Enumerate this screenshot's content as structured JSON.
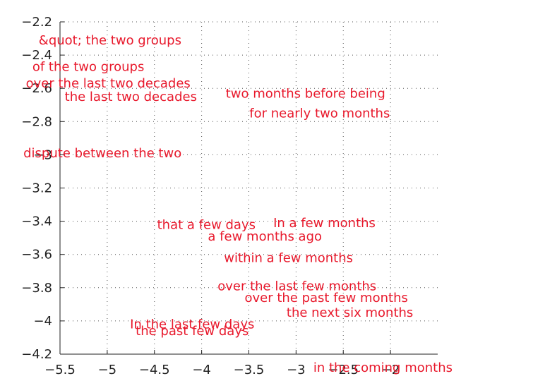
{
  "chart_data": {
    "type": "scatter",
    "title": "",
    "xlabel": "",
    "ylabel": "",
    "xlim": [
      -5.5,
      -1.5
    ],
    "ylim": [
      -4.2,
      -2.2
    ],
    "grid": true,
    "x_ticks": [
      {
        "value": -5.5,
        "label": "−5.5"
      },
      {
        "value": -5.0,
        "label": "−5"
      },
      {
        "value": -4.5,
        "label": "−4.5"
      },
      {
        "value": -4.0,
        "label": "−4"
      },
      {
        "value": -3.5,
        "label": "−3.5"
      },
      {
        "value": -3.0,
        "label": "−3"
      },
      {
        "value": -2.5,
        "label": "−2.5"
      },
      {
        "value": -2.0,
        "label": "−2"
      }
    ],
    "y_ticks": [
      {
        "value": -2.2,
        "label": "−2.2"
      },
      {
        "value": -2.4,
        "label": "−2.4"
      },
      {
        "value": -2.6,
        "label": "−2.6"
      },
      {
        "value": -2.8,
        "label": "−2.8"
      },
      {
        "value": -3.0,
        "label": "−3"
      },
      {
        "value": -3.2,
        "label": "−3.2"
      },
      {
        "value": -3.4,
        "label": "−3.4"
      },
      {
        "value": -3.6,
        "label": "−3.6"
      },
      {
        "value": -3.8,
        "label": "−3.8"
      },
      {
        "value": -4.0,
        "label": "−4"
      },
      {
        "value": -4.2,
        "label": "−4.2"
      }
    ],
    "text_color": "#e8192c",
    "points": [
      {
        "label": "&quot; the two groups",
        "x": -4.97,
        "y": -2.31
      },
      {
        "label": "of the two groups",
        "x": -5.2,
        "y": -2.47
      },
      {
        "label": "over the last two decades",
        "x": -4.99,
        "y": -2.57
      },
      {
        "label": "the last two decades",
        "x": -4.75,
        "y": -2.65
      },
      {
        "label": "two months before being",
        "x": -2.9,
        "y": -2.63
      },
      {
        "label": "for nearly two months",
        "x": -2.75,
        "y": -2.75
      },
      {
        "label": "dispute between the two",
        "x": -5.05,
        "y": -2.99
      },
      {
        "label": "that a few days",
        "x": -3.95,
        "y": -3.42
      },
      {
        "label": "In a few months",
        "x": -2.7,
        "y": -3.41
      },
      {
        "label": "a few months ago",
        "x": -3.33,
        "y": -3.49
      },
      {
        "label": "within a few months",
        "x": -3.08,
        "y": -3.62
      },
      {
        "label": "over the last few months",
        "x": -2.99,
        "y": -3.79
      },
      {
        "label": "over the past few months",
        "x": -2.68,
        "y": -3.86
      },
      {
        "label": "the next six months",
        "x": -2.43,
        "y": -3.95
      },
      {
        "label": "In the last few days",
        "x": -4.1,
        "y": -4.02
      },
      {
        "label": "the past few days",
        "x": -4.1,
        "y": -4.06
      },
      {
        "label": "in the coming months",
        "x": -2.08,
        "y": -4.28
      }
    ]
  }
}
